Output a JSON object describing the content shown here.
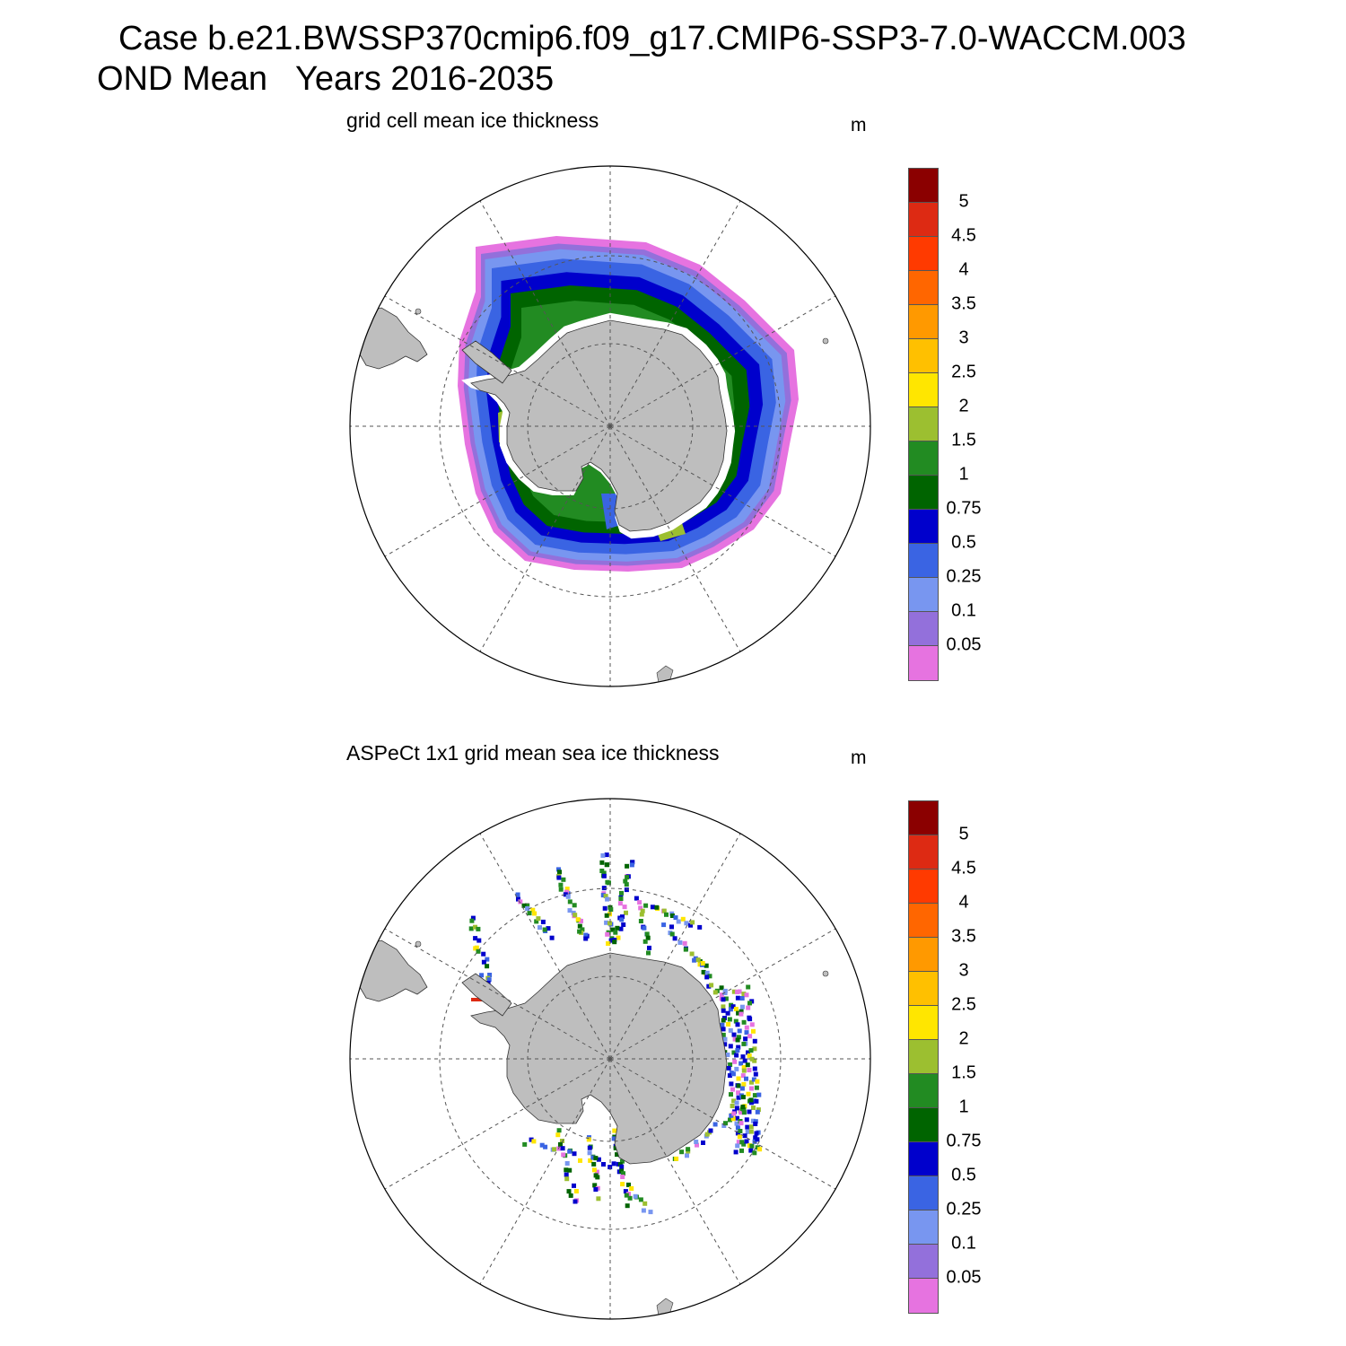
{
  "title": {
    "line1": "Case b.e21.BWSSP370cmip6.f09_g17.CMIP6-SSP3-7.0-WACCM.003",
    "line2": "OND Mean   Years 2016-2035"
  },
  "panels": [
    {
      "title": "grid cell mean ice thickness",
      "units": "m"
    },
    {
      "title": "ASPeCt 1x1 grid mean sea ice thickness",
      "units": "m"
    }
  ],
  "colorbar": {
    "labels": [
      "5",
      "4.5",
      "4",
      "3.5",
      "3",
      "2.5",
      "2",
      "1.5",
      "1",
      "0.75",
      "0.5",
      "0.25",
      "0.1",
      "0.05"
    ],
    "colors": [
      "#8b0000",
      "#dd2a13",
      "#ff3a00",
      "#ff6600",
      "#ff9900",
      "#ffc000",
      "#ffe600",
      "#9cbf30",
      "#228b22",
      "#006400",
      "#0000cc",
      "#3a64e3",
      "#7896f0",
      "#9370db",
      "#e673e0"
    ]
  },
  "map_style": {
    "land_color": "#bebebe",
    "ocean_color": "#ffffff",
    "grid_color": "#555555"
  }
}
